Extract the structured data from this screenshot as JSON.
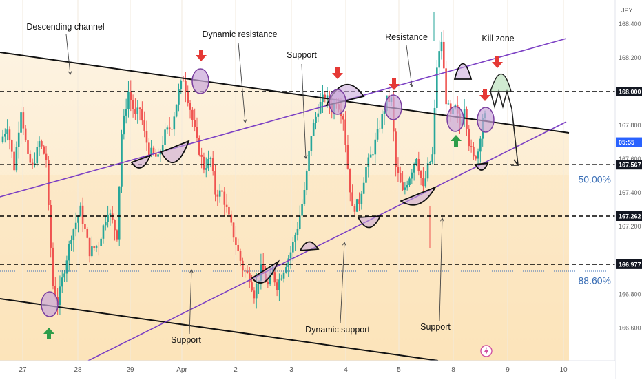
{
  "chart_data": {
    "type": "candlestick",
    "currency_label": "JPY",
    "price_axis": {
      "ticks": [
        168.4,
        168.2,
        167.8,
        167.6,
        167.4,
        167.2,
        166.8,
        166.6
      ],
      "range": [
        166.46,
        168.55
      ]
    },
    "time_axis": {
      "labels": [
        "27",
        "28",
        "29",
        "Apr",
        "2",
        "3",
        "4",
        "5",
        "8",
        "9",
        "10"
      ]
    },
    "price_tags": [
      {
        "value": 168.0,
        "label": "168.000",
        "style": "dark"
      },
      {
        "value": 167.7,
        "label": "05:55",
        "style": "blue"
      },
      {
        "value": 167.567,
        "label": "167.567",
        "style": "dark"
      },
      {
        "value": 167.262,
        "label": "167.262",
        "style": "dark"
      },
      {
        "value": 166.977,
        "label": "166.977",
        "style": "dark"
      }
    ],
    "fib_labels": [
      {
        "label": "50.00%",
        "value": 167.48
      },
      {
        "label": "88.60%",
        "value": 166.88
      }
    ],
    "horizontal_levels": [
      168.0,
      167.567,
      167.262,
      166.977
    ],
    "annotations": [
      "Descending channel",
      "Dynamic resistance",
      "Support",
      "Resistance",
      "Kill zone",
      "Support",
      "Dynamic support",
      "Support"
    ],
    "candles_description": "USD/JPY hourly candlesticks, roughly 27 Mar to 8 Apr, ranging between about 166.7 and 168.4",
    "colors": {
      "up": "#26a69a",
      "down": "#ef5350",
      "channel_fill": "#fde8c4",
      "purple_line": "#7b3fc4",
      "marker_arrow_down": "#e53935",
      "marker_arrow_up": "#2e9d4a",
      "circle_fill": "#c9a6d8",
      "kill_zone_fill": "#c8e6c9"
    }
  }
}
